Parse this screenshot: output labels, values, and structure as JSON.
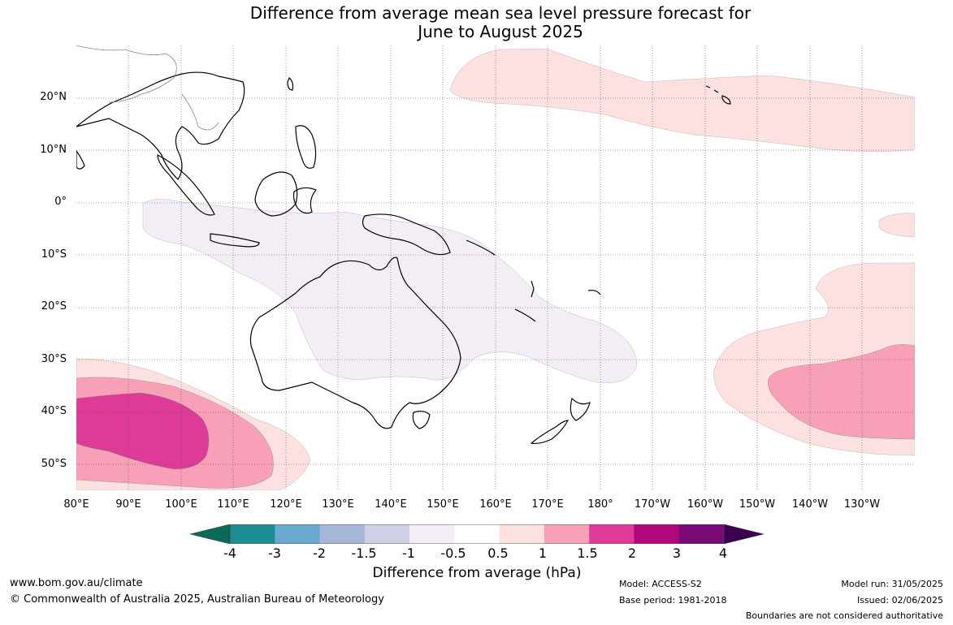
{
  "title_line1": "Difference from average mean sea level pressure forecast for",
  "title_line2": "June to August 2025",
  "lat_labels": [
    "20°N",
    "10°N",
    "0°",
    "10°S",
    "20°S",
    "30°S",
    "40°S",
    "50°S"
  ],
  "lon_labels": [
    "80°E",
    "90°E",
    "100°E",
    "110°E",
    "120°E",
    "130°E",
    "140°E",
    "150°E",
    "160°E",
    "170°E",
    "180°",
    "170°W",
    "160°W",
    "150°W",
    "140°W",
    "130°W"
  ],
  "colorbar": {
    "label": "Difference from average (hPa)",
    "ticks": [
      "-4",
      "-3",
      "-2",
      "-1.5",
      "-1",
      "-0.5",
      "0.5",
      "1",
      "1.5",
      "2",
      "3",
      "4"
    ],
    "colors": [
      "#0a6a5a",
      "#1e8c93",
      "#67a9cf",
      "#a6b6d9",
      "#cfcfe6",
      "#f3eef6",
      "#ffffff",
      "#fde0e0",
      "#f7a0b8",
      "#de3a98",
      "#b0087a",
      "#7a0a78",
      "#3c0050"
    ]
  },
  "footer": {
    "website": "www.bom.gov.au/climate",
    "copyright": "© Commonwealth of Australia 2025, Australian Bureau of Meteorology",
    "model": "Model: ACCESS-S2",
    "base_period": "Base period: 1981-2018",
    "model_run": "Model run: 31/05/2025",
    "issued": "Issued: 02/06/2025",
    "disclaimer": "Boundaries are not considered authoritative"
  }
}
